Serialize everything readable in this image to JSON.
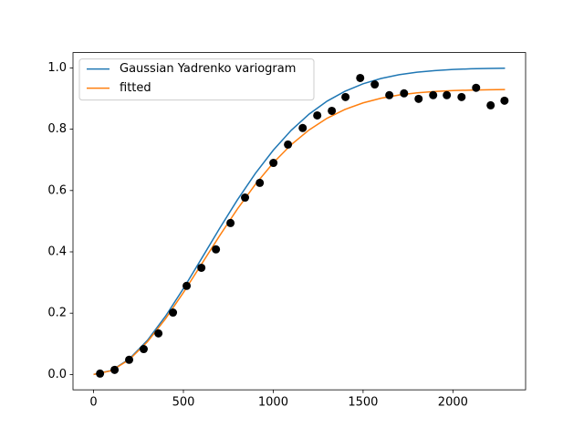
{
  "chart_data": {
    "type": "line",
    "x": [
      0,
      100,
      200,
      300,
      400,
      500,
      600,
      700,
      800,
      900,
      1000,
      1100,
      1200,
      1300,
      1400,
      1500,
      1600,
      1700,
      1800,
      1900,
      2000,
      2100,
      2200,
      2290
    ],
    "series": [
      {
        "name": "Gaussian Yadrenko variogram",
        "color": "#1f77b4",
        "values": [
          0,
          0.0131,
          0.0512,
          0.1116,
          0.1898,
          0.2803,
          0.3771,
          0.475,
          0.569,
          0.6554,
          0.7315,
          0.7964,
          0.8495,
          0.8917,
          0.924,
          0.9481,
          0.9655,
          0.9777,
          0.9859,
          0.9913,
          0.9948,
          0.997,
          0.9983,
          0.999
        ]
      },
      {
        "name": "fitted",
        "color": "#ff7f0e",
        "values": [
          0,
          0.0125,
          0.0491,
          0.1068,
          0.1813,
          0.2673,
          0.359,
          0.4512,
          0.5393,
          0.6197,
          0.6902,
          0.7496,
          0.7978,
          0.8359,
          0.8647,
          0.8859,
          0.9011,
          0.9115,
          0.9185,
          0.923,
          0.9259,
          0.9277,
          0.9287,
          0.9293
        ]
      }
    ],
    "scatter": {
      "color": "#000000",
      "x": [
        36,
        117,
        198,
        279,
        361,
        442,
        518,
        600,
        681,
        762,
        843,
        925,
        1001,
        1082,
        1164,
        1245,
        1326,
        1402,
        1484,
        1565,
        1646,
        1728,
        1809,
        1890,
        1966,
        2048,
        2129,
        2210,
        2287
      ],
      "values": [
        0.003,
        0.015,
        0.048,
        0.083,
        0.134,
        0.202,
        0.289,
        0.348,
        0.408,
        0.494,
        0.577,
        0.625,
        0.69,
        0.75,
        0.804,
        0.845,
        0.86,
        0.905,
        0.967,
        0.946,
        0.911,
        0.917,
        0.899,
        0.911,
        0.911,
        0.905,
        0.935,
        0.878,
        0.893
      ]
    },
    "xlim": [
      -114.5,
      2404.5
    ],
    "ylim": [
      -0.05,
      1.05
    ],
    "xticks": [
      0,
      500,
      1000,
      1500,
      2000
    ],
    "yticks": [
      {
        "value": 0,
        "label": "0.0"
      },
      {
        "value": 0.2,
        "label": "0.2"
      },
      {
        "value": 0.4,
        "label": "0.4"
      },
      {
        "value": 0.6,
        "label": "0.6"
      },
      {
        "value": 0.8,
        "label": "0.8"
      },
      {
        "value": 1,
        "label": "1.0"
      }
    ],
    "legend": "upper left"
  }
}
